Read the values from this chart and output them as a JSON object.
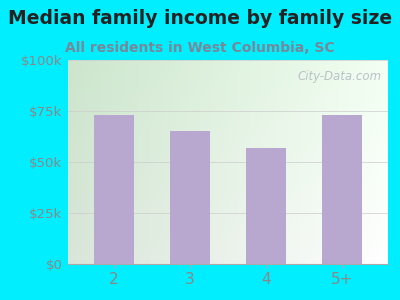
{
  "title": "Median family income by family size",
  "subtitle": "All residents in West Columbia, SC",
  "categories": [
    "2",
    "3",
    "4",
    "5+"
  ],
  "values": [
    73000,
    65000,
    57000,
    73000
  ],
  "bar_color": "#b8a8d0",
  "ylim": [
    0,
    100000
  ],
  "yticks": [
    0,
    25000,
    50000,
    75000,
    100000
  ],
  "ytick_labels": [
    "$0",
    "$25k",
    "$50k",
    "$75k",
    "$100k"
  ],
  "bg_outer": "#00eeff",
  "title_color": "#222222",
  "subtitle_color": "#778899",
  "tick_color": "#888888",
  "watermark": "City-Data.com",
  "title_fontsize": 13.5,
  "subtitle_fontsize": 10
}
